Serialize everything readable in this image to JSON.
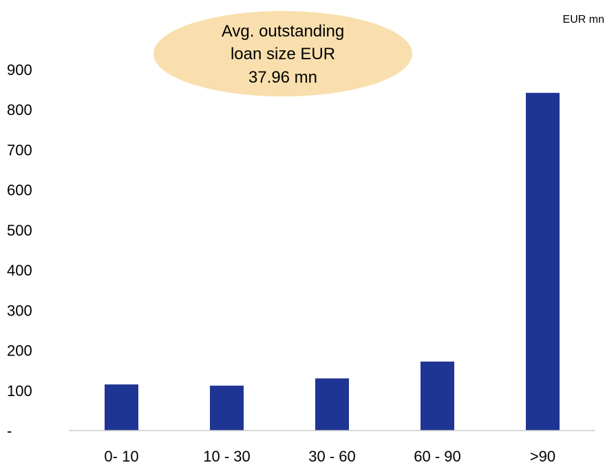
{
  "chart_data": {
    "type": "bar",
    "unit_label": "EUR mn",
    "annotation": "Avg. outstanding loan size EUR 37.96 mn",
    "annotation_lines": [
      "Avg. outstanding",
      "loan size EUR",
      "37.96 mn"
    ],
    "categories": [
      "0- 10",
      "10 - 30",
      "30 - 60",
      "60 - 90",
      ">90"
    ],
    "values": [
      115,
      112,
      130,
      172,
      842
    ],
    "ylim": [
      0,
      900
    ],
    "yticks": [
      0,
      100,
      200,
      300,
      400,
      500,
      600,
      700,
      800,
      900
    ],
    "ytick_labels": [
      "-",
      "100",
      "200",
      "300",
      "400",
      "500",
      "600",
      "700",
      "800",
      "900"
    ],
    "grid": false,
    "legend": "none",
    "colors": {
      "bar": "#1f3593",
      "bubble": "#f9dfae",
      "axis": "#cccccc"
    }
  }
}
